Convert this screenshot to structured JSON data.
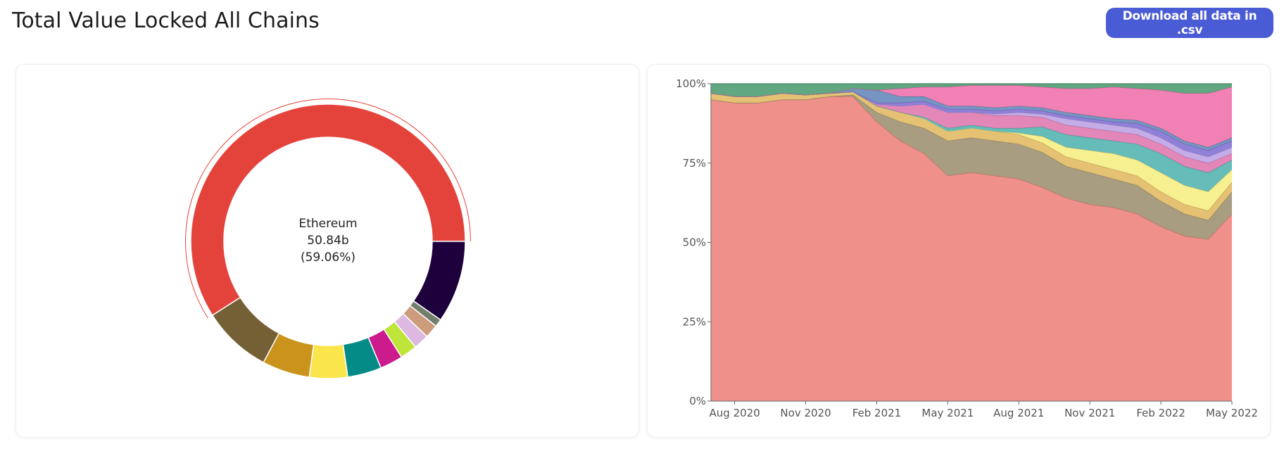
{
  "header": {
    "title": "Total Value Locked All Chains",
    "download_label": "Download all data in .csv"
  },
  "chart_data": [
    {
      "type": "pie",
      "variant": "donut",
      "center_label": {
        "name": "Ethereum",
        "value": "50.84b",
        "percent": "(59.06%)"
      },
      "slices": [
        {
          "name": "Ethereum",
          "share": 59.06,
          "color": "#e4433b"
        },
        {
          "color": "#1e003d",
          "share": 9.7
        },
        {
          "color": "#747e6e",
          "share": 0.9
        },
        {
          "color": "#cc9c7c",
          "share": 1.6
        },
        {
          "color": "#ddb8e0",
          "share": 1.8
        },
        {
          "color": "#bfe43a",
          "share": 2.0
        },
        {
          "color": "#cb1b8c",
          "share": 2.7
        },
        {
          "color": "#058b87",
          "share": 4.0
        },
        {
          "color": "#fbe54c",
          "share": 4.5
        },
        {
          "color": "#ca931b",
          "share": 5.6
        },
        {
          "color": "#756036",
          "share": 8.14
        }
      ],
      "active_slice": "Ethereum"
    },
    {
      "type": "area",
      "stacked": true,
      "normalized": true,
      "x_tick_labels": [
        "Aug 2020",
        "Nov 2020",
        "Feb 2021",
        "May 2021",
        "Aug 2021",
        "Nov 2021",
        "Feb 2022",
        "May 2022"
      ],
      "y_tick_labels": [
        "0%",
        "25%",
        "50%",
        "75%",
        "100%"
      ],
      "ylim": [
        0,
        100
      ],
      "x": [
        "2020-07",
        "2020-08",
        "2020-09",
        "2020-10",
        "2020-11",
        "2020-12",
        "2021-01",
        "2021-02",
        "2021-03",
        "2021-04",
        "2021-05",
        "2021-06",
        "2021-07",
        "2021-08",
        "2021-09",
        "2021-10",
        "2021-11",
        "2021-12",
        "2022-01",
        "2022-02",
        "2022-03",
        "2022-04",
        "2022-05"
      ],
      "series": [
        {
          "color": "#ef8a84",
          "values": [
            95,
            94,
            94,
            95,
            95,
            96,
            96,
            88,
            82,
            78,
            71,
            72,
            71,
            70,
            67,
            64,
            62,
            61,
            59,
            55,
            52,
            51,
            59
          ]
        },
        {
          "color": "#a4987a",
          "values": [
            0,
            0,
            0,
            0,
            0,
            0,
            0.5,
            3,
            6,
            8,
            11,
            11,
            11,
            11,
            11,
            10,
            10,
            9,
            9,
            8,
            7,
            6,
            7
          ]
        },
        {
          "color": "#e4bf6b",
          "values": [
            2,
            2,
            2,
            2,
            1.5,
            1,
            1,
            2,
            3,
            3,
            3,
            3,
            3,
            3,
            3,
            3,
            3,
            3,
            3,
            3,
            3,
            3,
            3
          ]
        },
        {
          "color": "#f7ef8b",
          "values": [
            0,
            0,
            0,
            0,
            0,
            0,
            0,
            0,
            0,
            0,
            0,
            0,
            0,
            0.5,
            2,
            3,
            4,
            5,
            5,
            6,
            6,
            6,
            4
          ]
        },
        {
          "color": "#5eb8b4",
          "values": [
            0,
            0,
            0,
            0,
            0,
            0,
            0,
            0,
            0,
            0.5,
            1,
            1,
            1,
            1.5,
            3,
            4,
            4,
            4,
            5,
            6,
            6,
            6,
            3
          ]
        },
        {
          "color": "#e281b5",
          "values": [
            0,
            0,
            0,
            0,
            0,
            0,
            0,
            0.5,
            2,
            4,
            5,
            4,
            4,
            4,
            3,
            3,
            3,
            3,
            3,
            3,
            3,
            3,
            2
          ]
        },
        {
          "color": "#c1a8e6",
          "values": [
            0,
            0,
            0,
            0,
            0,
            0,
            0,
            0,
            0,
            0,
            0,
            0,
            0.5,
            1,
            1,
            2,
            2,
            2,
            2,
            2,
            2,
            2,
            2
          ]
        },
        {
          "color": "#8a79d6",
          "values": [
            0,
            0,
            0,
            0,
            0,
            0,
            0,
            0.5,
            1,
            1,
            1,
            1,
            1,
            1,
            1,
            1,
            1,
            1,
            1.5,
            2,
            2,
            2,
            2
          ]
        },
        {
          "color": "#6f8fbf",
          "values": [
            0,
            0,
            0,
            0,
            0,
            0,
            1,
            4,
            2,
            1.5,
            1,
            1,
            1,
            1,
            1,
            1,
            1,
            1,
            1,
            1,
            1,
            1,
            1
          ]
        },
        {
          "color": "#f07ab0",
          "values": [
            0,
            0,
            0,
            0,
            0,
            0,
            0,
            0,
            2.5,
            3,
            6,
            6.5,
            7,
            6.5,
            6.5,
            7.5,
            8.5,
            10,
            10,
            12,
            15,
            17,
            16
          ]
        },
        {
          "color": "#59a27b",
          "values": [
            3,
            4,
            4,
            3,
            3.5,
            3,
            1.5,
            2,
            1.5,
            1,
            1,
            0.5,
            0.5,
            0.5,
            1,
            1.5,
            1.5,
            1,
            1.5,
            2,
            3,
            3,
            1
          ]
        }
      ]
    }
  ]
}
